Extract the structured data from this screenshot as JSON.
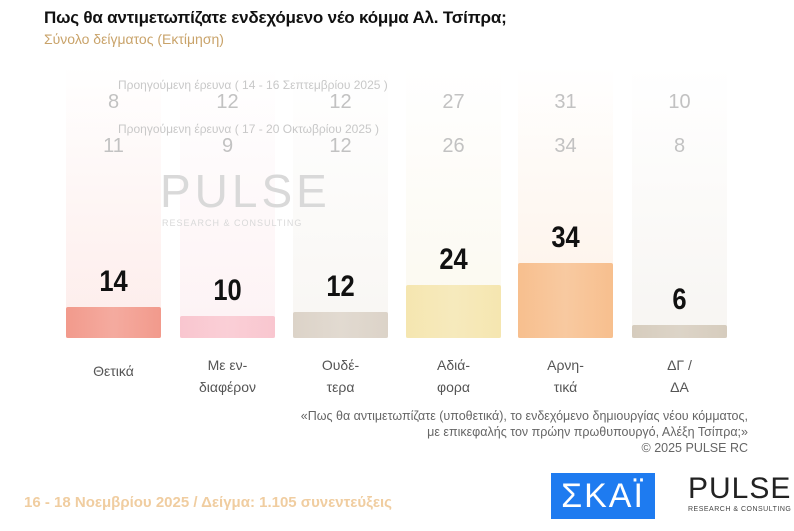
{
  "title": "Πως θα αντιμετωπίζατε ενδεχόμενο νέο κόμμα Αλ. Τσίπρα;",
  "subtitle": "Σύνολο δείγματος   (Εκτίμηση)",
  "chart_data": {
    "type": "bar",
    "categories": [
      "Θετικά",
      "Με εν-διαφέρον",
      "Ουδέ-τερα",
      "Αδιά-φορα",
      "Αρνη-τικά",
      "ΔΓ / ΔΑ"
    ],
    "category_lines": [
      [
        "Θετικά"
      ],
      [
        "Με εν-",
        "διαφέρον"
      ],
      [
        "Ουδέ-",
        "τερα"
      ],
      [
        "Αδιά-",
        "φορα"
      ],
      [
        "Αρνη-",
        "τικά"
      ],
      [
        "ΔΓ /",
        "ΔΑ"
      ]
    ],
    "values": [
      14,
      10,
      12,
      24,
      34,
      6
    ],
    "colors": [
      "#f29a8c",
      "#f9c6cf",
      "#dcd3c8",
      "#f5e6b0",
      "#f7bf8e",
      "#d6ccbd"
    ],
    "previous": [
      {
        "label": "Προηγούμενη έρευνα ( 14 - 16 Σεπτεμβρίου 2025 )",
        "values": [
          8,
          12,
          12,
          27,
          31,
          10
        ]
      },
      {
        "label": "Προηγούμενη έρευνα ( 17 - 20 Οκτωβρίου 2025 )",
        "values": [
          11,
          9,
          12,
          26,
          34,
          8
        ]
      }
    ],
    "ylim": [
      0,
      40
    ]
  },
  "watermark": "PULSE",
  "watermark_sub": "RESEARCH & CONSULTING",
  "note_lines": [
    "«Πως θα αντιμετωπίζατε (υποθετικά), το ενδεχόμενο δημιουργίας νέου κόμματος,",
    "με επικεφαλής τον πρώην πρωθυπουργό, Αλέξη Τσίπρα;»",
    "©  2025  PULSE RC"
  ],
  "footer": "16 - 18 Νοεμβρίου 2025  /  Δείγμα:  1.105 συνεντεύξεις",
  "logos": {
    "skai": "ΣΚΑΪ",
    "pulse": "PULSE",
    "pulse_sub": "RESEARCH & CONSULTING"
  }
}
